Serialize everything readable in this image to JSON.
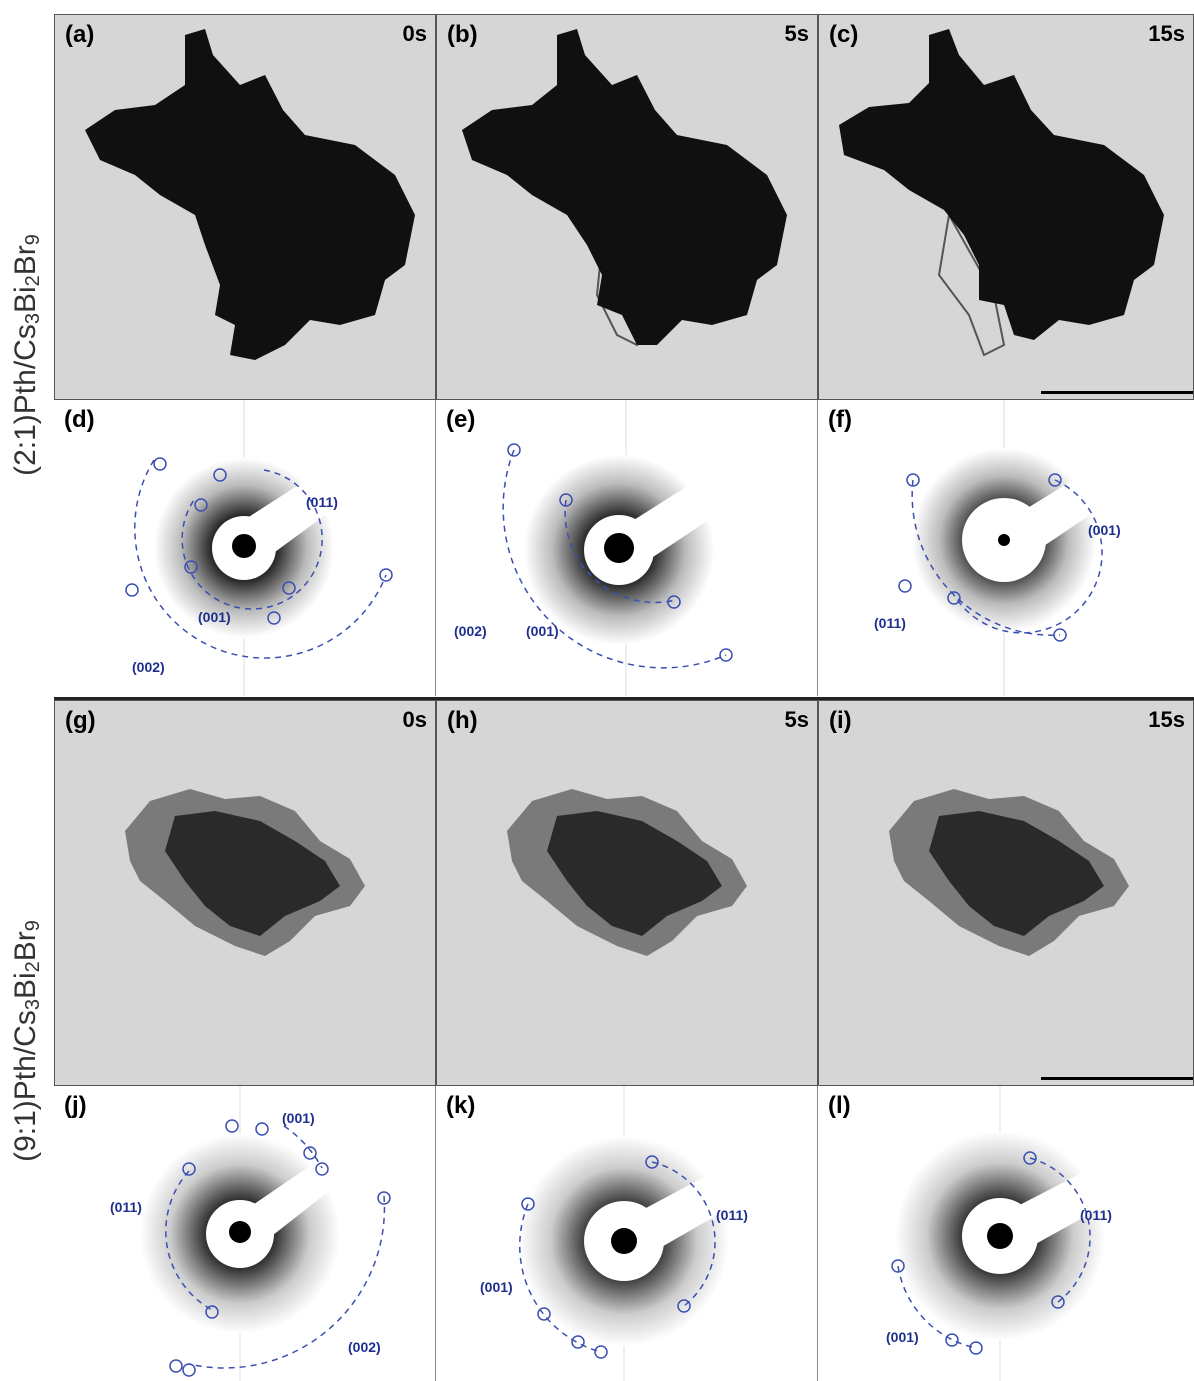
{
  "figure": {
    "row_labels": [
      {
        "prefix": "(2:1)Pth/Cs",
        "s1": "3",
        "mid": "Bi",
        "s2": "2",
        "end": "Br",
        "s3": "9"
      },
      {
        "prefix": "(9:1)Pth/Cs",
        "s1": "3",
        "mid": "Bi",
        "s2": "2",
        "end": "Br",
        "s3": "9"
      }
    ],
    "tem_panels": [
      {
        "label": "(a)",
        "time": "0s"
      },
      {
        "label": "(b)",
        "time": "5s"
      },
      {
        "label": "(c)",
        "time": "15s"
      },
      {
        "label": "(g)",
        "time": "0s"
      },
      {
        "label": "(h)",
        "time": "5s"
      },
      {
        "label": "(i)",
        "time": "15s"
      }
    ],
    "saed_panels": [
      {
        "label": "(d)",
        "rings": [
          "(011)",
          "(001)",
          "(002)"
        ]
      },
      {
        "label": "(e)",
        "rings": [
          "(002)",
          "(001)"
        ]
      },
      {
        "label": "(f)",
        "rings": [
          "(001)",
          "(011)"
        ]
      },
      {
        "label": "(j)",
        "rings": [
          "(001)",
          "(011)",
          "(002)"
        ]
      },
      {
        "label": "(k)",
        "rings": [
          "(011)",
          "(001)"
        ]
      },
      {
        "label": "(l)",
        "rings": [
          "(011)",
          "(001)"
        ]
      }
    ],
    "colors": {
      "ring": "#3b4fb0",
      "particle_large": "#101010",
      "particle_small": "#2a2a2a",
      "background": "#d6d6d6"
    }
  }
}
